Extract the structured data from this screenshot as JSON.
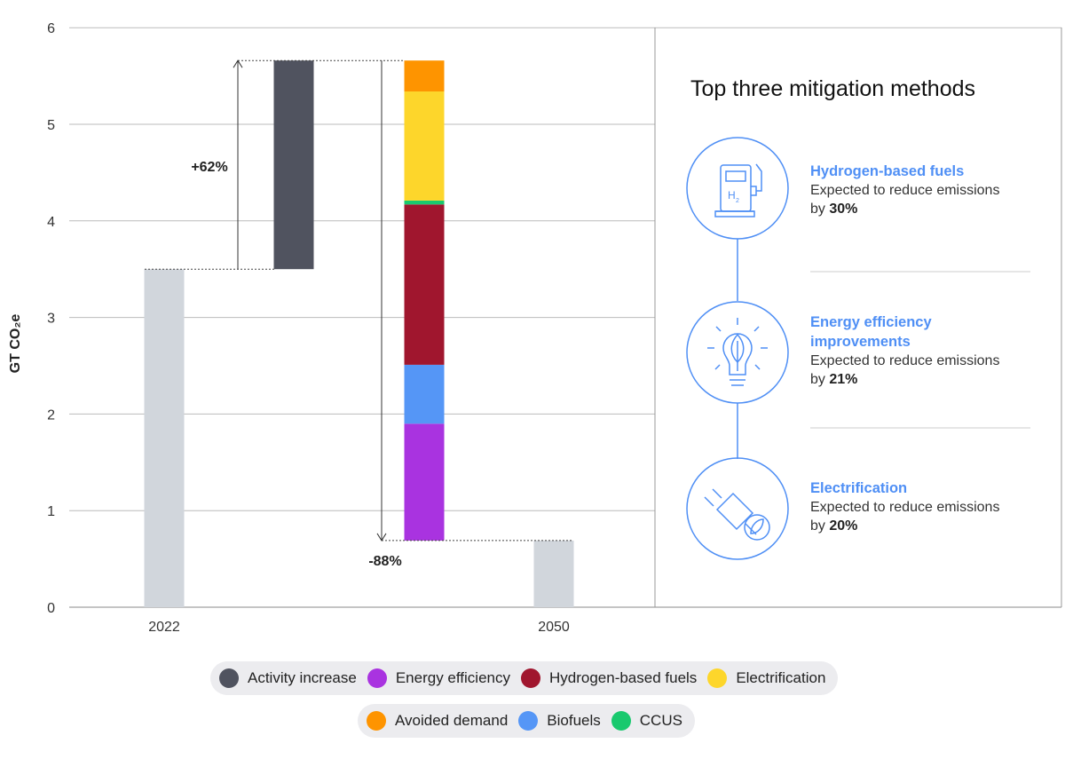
{
  "chart_data": {
    "type": "bar",
    "subtype": "waterfall",
    "ylabel": "GT CO₂e",
    "ylim": [
      0,
      6
    ],
    "yticks": [
      0,
      1,
      2,
      3,
      4,
      5,
      6
    ],
    "x_labels": [
      "2022",
      "2050"
    ],
    "base_2022": 3.5,
    "activity_increase": {
      "from": 3.5,
      "to": 5.66
    },
    "increase_annotation": "+62%",
    "decrease_annotation": "-88%",
    "mitigation_stack": [
      {
        "name": "Energy efficiency",
        "from": 0.69,
        "to": 1.9
      },
      {
        "name": "Biofuels",
        "from": 1.9,
        "to": 2.51
      },
      {
        "name": "Hydrogen-based fuels",
        "from": 2.51,
        "to": 4.17
      },
      {
        "name": "CCUS",
        "from": 4.17,
        "to": 4.21
      },
      {
        "name": "Electrification",
        "from": 4.21,
        "to": 5.34
      },
      {
        "name": "Avoided demand",
        "from": 5.34,
        "to": 5.66
      }
    ],
    "value_2050": 0.69,
    "grid": true,
    "legend_position": "bottom"
  },
  "colors": {
    "baseline": "#d1d6dc",
    "Activity increase": "#50535f",
    "Energy efficiency": "#a933e0",
    "Hydrogen-based fuels": "#a0162e",
    "Electrification": "#fdd62b",
    "Avoided demand": "#fe9400",
    "Biofuels": "#5596f6",
    "CCUS": "#19c96e",
    "accent": "#4f8ff5"
  },
  "legend": {
    "row1": [
      "Activity increase",
      "Energy efficiency",
      "Hydrogen-based fuels",
      "Electrification"
    ],
    "row2": [
      "Avoided demand",
      "Biofuels",
      "CCUS"
    ]
  },
  "panel": {
    "title": "Top three mitigation methods",
    "methods": [
      {
        "name": "Hydrogen-based fuels",
        "desc_prefix": "Expected to reduce emissions",
        "desc_by": "by",
        "pct": "30%",
        "icon": "hydrogen-pump-icon"
      },
      {
        "name": "Energy efficiency improvements",
        "name_line1": "Energy efficiency",
        "name_line2": "improvements",
        "desc_prefix": "Expected to reduce emissions",
        "desc_by": "by",
        "pct": "21%",
        "icon": "lightbulb-leaf-icon"
      },
      {
        "name": "Electrification",
        "desc_prefix": "Expected to reduce emissions",
        "desc_by": "by",
        "pct": "20%",
        "icon": "plug-leaf-icon"
      }
    ]
  }
}
